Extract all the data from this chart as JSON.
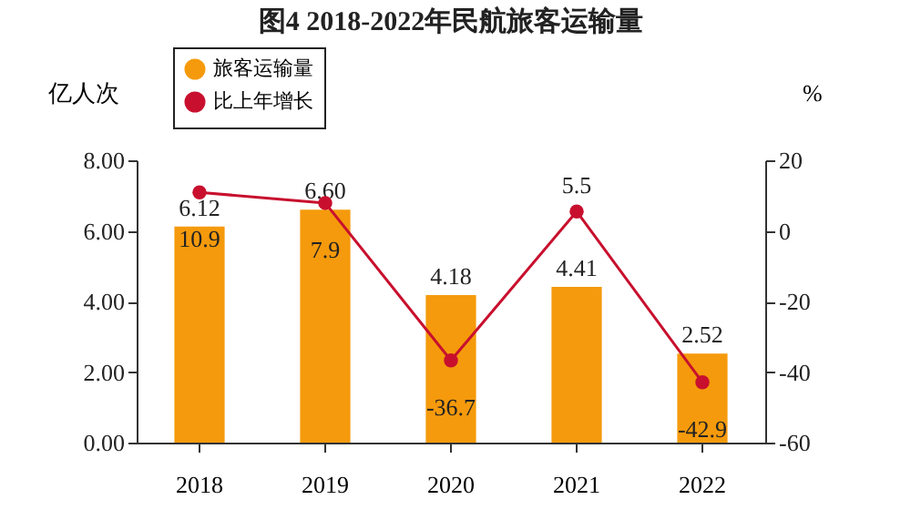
{
  "chart_data": {
    "type": "bar",
    "title": "图4  2018-2022年民航旅客运输量",
    "ylabel": "亿人次",
    "y2label": "%",
    "categories": [
      "2018",
      "2019",
      "2020",
      "2021",
      "2022"
    ],
    "series": [
      {
        "name": "旅客运输量",
        "color": "#f59a0c",
        "values": [
          6.12,
          6.6,
          4.18,
          4.41,
          2.52
        ],
        "value_labels": [
          "6.12",
          "6.60",
          "4.18",
          "4.41",
          "2.52"
        ]
      },
      {
        "name": "比上年增长",
        "type": "line",
        "axis": "y2",
        "color": "#c8102e",
        "values": [
          10.9,
          7.9,
          -36.7,
          5.5,
          -42.9
        ],
        "value_labels": [
          "10.9",
          "7.9",
          "-36.7",
          "5.5",
          "-42.9"
        ]
      }
    ],
    "ylim": [
      0,
      8
    ],
    "yticks": [
      {
        "value": 0,
        "label": "0.00"
      },
      {
        "value": 2,
        "label": "2.00"
      },
      {
        "value": 4,
        "label": "4.00"
      },
      {
        "value": 6,
        "label": "6.00"
      },
      {
        "value": 8,
        "label": "8.00"
      }
    ],
    "y2lim": [
      -60,
      20
    ],
    "y2ticks": [
      -60,
      -40,
      -20,
      0,
      20
    ],
    "grid": false,
    "legend": "top left",
    "marker": "circle",
    "line_style": "solid"
  }
}
